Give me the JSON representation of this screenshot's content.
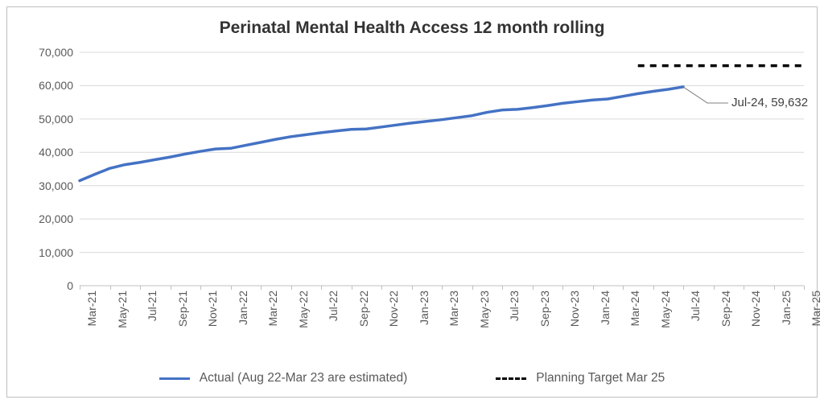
{
  "chart": {
    "type": "line",
    "title": "Perinatal Mental Health Access 12 month rolling",
    "title_fontsize": 21,
    "title_fontweight": "bold",
    "title_color": "#333333",
    "background_color": "#ffffff",
    "border_color": "#bfbfbf",
    "grid_color": "#d9d9d9",
    "axis_color": "#bfbfbf",
    "tick_color": "#595959",
    "tick_fontsize": 14,
    "ylim": [
      0,
      70000
    ],
    "ytick_step": 10000,
    "y_ticks": [
      "0",
      "10,000",
      "20,000",
      "30,000",
      "40,000",
      "50,000",
      "60,000",
      "70,000"
    ],
    "x_categories_all": [
      "Mar-21",
      "Apr-21",
      "May-21",
      "Jun-21",
      "Jul-21",
      "Aug-21",
      "Sep-21",
      "Oct-21",
      "Nov-21",
      "Dec-21",
      "Jan-22",
      "Feb-22",
      "Mar-22",
      "Apr-22",
      "May-22",
      "Jun-22",
      "Jul-22",
      "Aug-22",
      "Sep-22",
      "Oct-22",
      "Nov-22",
      "Dec-22",
      "Jan-23",
      "Feb-23",
      "Mar-23",
      "Apr-23",
      "May-23",
      "Jun-23",
      "Jul-23",
      "Aug-23",
      "Sep-23",
      "Oct-23",
      "Nov-23",
      "Dec-23",
      "Jan-24",
      "Feb-24",
      "Mar-24",
      "Apr-24",
      "May-24",
      "Jun-24",
      "Jul-24",
      "Aug-24",
      "Sep-24",
      "Oct-24",
      "Nov-24",
      "Dec-24",
      "Jan-25",
      "Feb-25",
      "Mar-25"
    ],
    "x_tick_shown": [
      "Mar-21",
      "May-21",
      "Jul-21",
      "Sep-21",
      "Nov-21",
      "Jan-22",
      "Mar-22",
      "May-22",
      "Jul-22",
      "Sep-22",
      "Nov-22",
      "Jan-23",
      "Mar-23",
      "May-23",
      "Jul-23",
      "Sep-23",
      "Nov-23",
      "Jan-24",
      "Mar-24",
      "May-24",
      "Jul-24",
      "Sep-24",
      "Nov-24",
      "Jan-25",
      "Mar-25"
    ],
    "x_tick_rotation_deg": -90,
    "series": {
      "actual": {
        "label": "Actual (Aug 22-Mar 23 are estimated)",
        "color": "#4472c4",
        "line_width": 3.5,
        "dash": "none",
        "values": [
          31500,
          33400,
          35200,
          36300,
          37000,
          37800,
          38600,
          39500,
          40300,
          41000,
          41200,
          42100,
          43000,
          43900,
          44700,
          45300,
          45900,
          46400,
          46900,
          47000,
          47600,
          48200,
          48800,
          49300,
          49800,
          50400,
          51000,
          52000,
          52700,
          52900,
          53400,
          54000,
          54700,
          55200,
          55700,
          56000,
          56800,
          57600,
          58300,
          58900,
          59632
        ]
      },
      "target": {
        "label": "Planning Target Mar 25",
        "color": "#000000",
        "line_width": 3.5,
        "dash": "8,7",
        "start_index": 37,
        "value": 66000
      }
    },
    "callout": {
      "index": 40,
      "label": "Jul-24, 59,632",
      "text_color": "#404040",
      "line_color": "#7f7f7f",
      "fontsize": 15
    },
    "legend": {
      "fontsize": 15.5,
      "color": "#595959",
      "position": "bottom-center",
      "solid_swatch_width": 38,
      "dash_swatch_width": 38
    }
  }
}
